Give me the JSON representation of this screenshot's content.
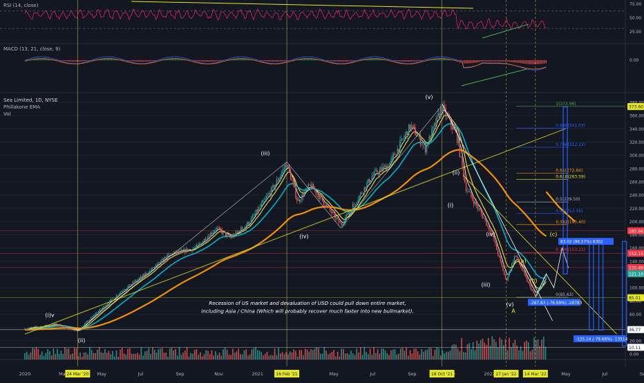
{
  "panes": {
    "rsi": {
      "label": "RSI (14, close)",
      "ticks": [
        "75.00",
        "50.00",
        "25.00"
      ]
    },
    "macd": {
      "label": "MACD (13, 21, close, 9)",
      "ticks": [
        "0.00"
      ]
    },
    "main": {
      "symbol": "Sea Limited, 1D, NYSE",
      "indicators": [
        "Phillakone EMA",
        "Vol"
      ],
      "ticks": [
        "380.00",
        "360.00",
        "340.00",
        "320.00",
        "300.00",
        "280.00",
        "260.00",
        "240.00",
        "220.00",
        "200.00",
        "180.00",
        "160.00",
        "140.00",
        "120.00",
        "100.00",
        "80.00",
        "60.00",
        "40.00",
        "20.00",
        "0.00"
      ],
      "price_tags": [
        {
          "text": "373.60",
          "price": 373.6,
          "color": "#e8e81e",
          "fg": "#131722"
        },
        {
          "text": "185.94",
          "price": 186,
          "color": "#f23645",
          "fg": "#ffffff"
        },
        {
          "text": "152.15",
          "price": 152,
          "color": "#f23645",
          "fg": "#ffffff"
        },
        {
          "text": "130.49",
          "price": 130.5,
          "color": "#f23645",
          "fg": "#ffffff"
        },
        {
          "text": "121.10",
          "price": 121.1,
          "color": "#26a69a",
          "fg": "#ffffff"
        },
        {
          "text": "85.01",
          "price": 85,
          "color": "#e8e81e",
          "fg": "#131722"
        },
        {
          "text": "36.77",
          "price": 36.8,
          "color": "#ffffff",
          "fg": "#131722"
        },
        {
          "text": "10.11",
          "price": 10.1,
          "color": "#ffffff",
          "fg": "#131722"
        }
      ]
    }
  },
  "x_axis": {
    "labels": [
      "2020",
      "Mar",
      "May",
      "Jul",
      "Sep",
      "Nov",
      "2021",
      "Mar",
      "May",
      "Jul",
      "Sep",
      "Nov",
      "2022",
      "Mar",
      "May",
      "Jul",
      "Sep"
    ],
    "highlighted": [
      "24 Mar '20",
      "16 Feb '21",
      "18 Oct '21",
      "27 Jan '22",
      "14 Mar '22"
    ]
  },
  "fib_levels": [
    {
      "label": "1(373.96)",
      "price": 373.96,
      "color": "#4caf50"
    },
    {
      "label": "0.886(341.03)",
      "price": 341.03,
      "color": "#2962ff"
    },
    {
      "label": "0.786(312.13)",
      "price": 312.13,
      "color": "#2962ff"
    },
    {
      "label": "0.65(272.84)",
      "price": 272.84,
      "color": "#ff9800"
    },
    {
      "label": "0.618(263.59)",
      "price": 263.59,
      "color": "#e8e81e"
    },
    {
      "label": "0.5(229.50)",
      "price": 229.5,
      "color": "#b2b5be"
    },
    {
      "label": "0.44(212.16)",
      "price": 212.16,
      "color": "#2962ff"
    },
    {
      "label": "0.382(195.40)",
      "price": 195.4,
      "color": "#ff9800"
    },
    {
      "label": "0.236(153.21)",
      "price": 153.21,
      "color": "#f23645"
    },
    {
      "label": "0(85.63)",
      "price": 85.63,
      "color": "#b2b5be"
    }
  ],
  "wave_labels": [
    {
      "text": "(i)v",
      "color": "#ffffff"
    },
    {
      "text": "(ii)",
      "color": "#ffffff"
    },
    {
      "text": "(iii)",
      "color": "#ffffff"
    },
    {
      "text": "(iv)",
      "color": "#ffffff"
    },
    {
      "text": "(v)",
      "color": "#ffffff"
    },
    {
      "text": "(i)",
      "color": "#ffffff"
    },
    {
      "text": "(ii)",
      "color": "#ffffff"
    },
    {
      "text": "(iii)",
      "color": "#ffffff"
    },
    {
      "text": "(iv)",
      "color": "#ffffff"
    },
    {
      "text": "(v)",
      "color": "#ffffff"
    },
    {
      "text": "A",
      "color": "#e8e81e"
    },
    {
      "text": "(a)",
      "color": "#e8e81e"
    },
    {
      "text": "(b)",
      "color": "#e8e81e"
    },
    {
      "text": "(c)",
      "color": "#e8e81e"
    }
  ],
  "measure_boxes": [
    {
      "text": "83.02 (96.57%) 8302"
    },
    {
      "text": "-287.83 (-76.99%) -28783"
    },
    {
      "text": "-135.14 (-79.66%) -13514"
    }
  ],
  "annotation": {
    "line1": "Recession of US market and devaluation of USD could pull down entire market,",
    "line2": "including Asia / China (Which will probably recover much faster into new bullmarket)."
  },
  "colors": {
    "background": "#131722",
    "up": "#26a69a",
    "down": "#ef5350",
    "rsi": "#e91e63",
    "ema_fast": "#ffffff",
    "ema_mid": "#ffeb3b",
    "ema_slow": "#00bcd4",
    "ema_long": "#ff9800",
    "trendline": "#e8e81e",
    "divergence": "#4caf50",
    "measure": "#2962ff"
  },
  "chart_data": {
    "type": "line",
    "title": "Sea Limited, 1D, NYSE",
    "x": [
      "2020-01",
      "2020-03-24",
      "2020-06",
      "2020-09",
      "2020-12",
      "2021-02-16",
      "2021-05",
      "2021-08",
      "2021-10-18",
      "2021-12",
      "2022-01-27",
      "2022-03-14",
      "2022-03-31"
    ],
    "series": [
      {
        "name": "Sea Limited, 1D, NYSE",
        "values": [
          40,
          37,
          105,
          170,
          200,
          285,
          215,
          290,
          373,
          250,
          110,
          86,
          121
        ]
      }
    ],
    "ylim": [
      0,
      380
    ],
    "grid": true
  }
}
